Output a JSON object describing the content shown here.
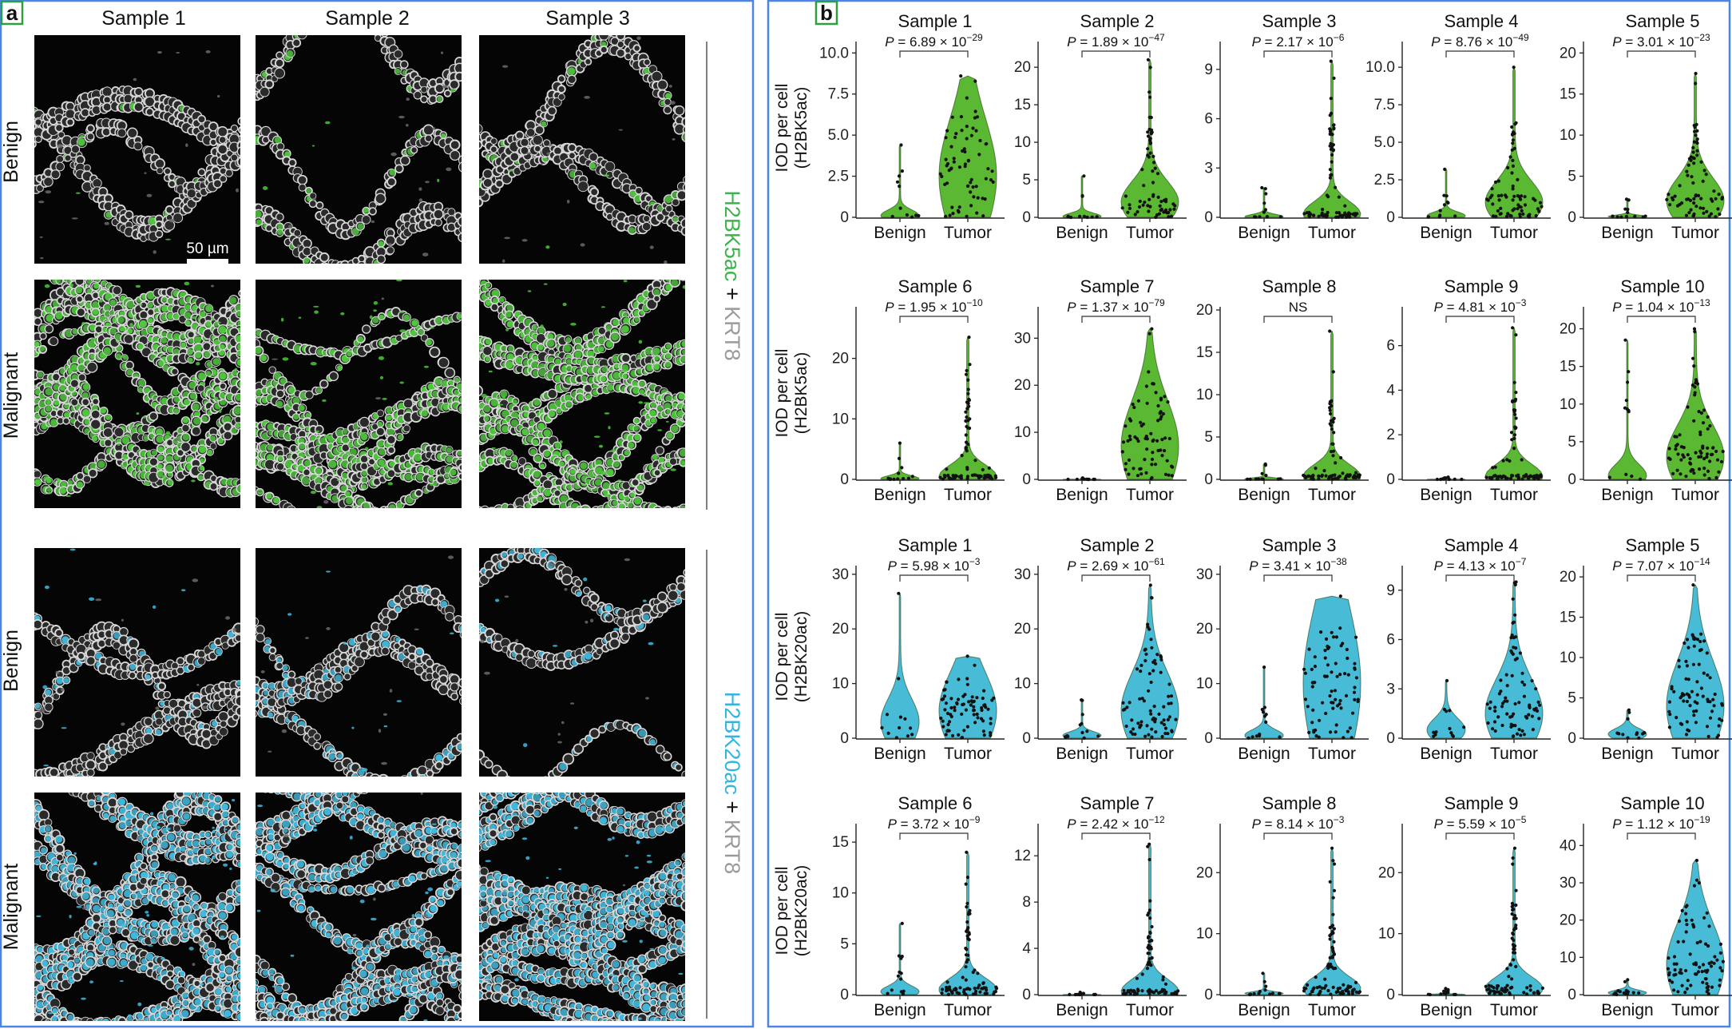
{
  "panel_a": {
    "label": "a",
    "column_headers": [
      "Sample 1",
      "Sample 2",
      "Sample 3"
    ],
    "row_labels": [
      "Benign",
      "Malignant",
      "Benign",
      "Malignant"
    ],
    "scale_bar": "50 µm",
    "side_labels": [
      {
        "marker": "H2BK5ac",
        "joiner": " + ",
        "counter": "KRT8"
      },
      {
        "marker": "H2BK20ac",
        "joiner": " + ",
        "counter": "KRT8"
      }
    ],
    "images": [
      {
        "row": 0,
        "col": 0,
        "nuclear_stain": "H2BK5ac",
        "nuclear_fraction": 0.05
      },
      {
        "row": 0,
        "col": 1,
        "nuclear_stain": "H2BK5ac",
        "nuclear_fraction": 0.12
      },
      {
        "row": 0,
        "col": 2,
        "nuclear_stain": "H2BK5ac",
        "nuclear_fraction": 0.08
      },
      {
        "row": 1,
        "col": 0,
        "nuclear_stain": "H2BK5ac",
        "nuclear_fraction": 0.65
      },
      {
        "row": 1,
        "col": 1,
        "nuclear_stain": "H2BK5ac",
        "nuclear_fraction": 0.6
      },
      {
        "row": 1,
        "col": 2,
        "nuclear_stain": "H2BK5ac",
        "nuclear_fraction": 0.8
      },
      {
        "row": 2,
        "col": 0,
        "nuclear_stain": "H2BK20ac",
        "nuclear_fraction": 0.15
      },
      {
        "row": 2,
        "col": 1,
        "nuclear_stain": "H2BK20ac",
        "nuclear_fraction": 0.25
      },
      {
        "row": 2,
        "col": 2,
        "nuclear_stain": "H2BK20ac",
        "nuclear_fraction": 0.15
      },
      {
        "row": 3,
        "col": 0,
        "nuclear_stain": "H2BK20ac",
        "nuclear_fraction": 0.7
      },
      {
        "row": 3,
        "col": 1,
        "nuclear_stain": "H2BK20ac",
        "nuclear_fraction": 0.65
      },
      {
        "row": 3,
        "col": 2,
        "nuclear_stain": "H2BK20ac",
        "nuclear_fraction": 0.7
      }
    ]
  },
  "panel_b": {
    "label": "b",
    "x_categories": [
      "Benign",
      "Tumor"
    ],
    "row_ylabels": [
      [
        "IOD per cell",
        "(H2BK5ac)"
      ],
      [
        "IOD per cell",
        "(H2BK5ac)"
      ],
      [
        "IOD per cell",
        "(H2BK20ac)"
      ],
      [
        "IOD per cell",
        "(H2BK20ac)"
      ]
    ]
  },
  "colors": {
    "h2bk5ac": "#5bb832",
    "h2bk20ac": "#48bcd6",
    "frame": "#4a86e8",
    "label_box": "#2e9e3e"
  },
  "chart_data": [
    {
      "type": "violin",
      "row": 0,
      "title": "Sample 1",
      "series": "H2BK5ac",
      "ylim": [
        0,
        10.5
      ],
      "yticks": [
        0,
        2.5,
        5.0,
        7.5,
        10.0
      ],
      "ytick_labels": [
        "0",
        "2.5",
        "5.0",
        "7.5",
        "10.0"
      ],
      "p_label": {
        "prefix": "P = 6.89 × 10",
        "exp": "−29"
      },
      "groups": [
        {
          "name": "Benign",
          "max": 4.4,
          "median": 0.1
        },
        {
          "name": "Tumor",
          "max": 8.6,
          "median": 2.5
        }
      ]
    },
    {
      "type": "violin",
      "row": 0,
      "title": "Sample 2",
      "series": "H2BK5ac",
      "ylim": [
        0,
        23
      ],
      "yticks": [
        0,
        5,
        10,
        15,
        20
      ],
      "ytick_labels": [
        "0",
        "5",
        "10",
        "15",
        "20"
      ],
      "p_label": {
        "prefix": "P = 1.89 × 10",
        "exp": "−47"
      },
      "groups": [
        {
          "name": "Benign",
          "max": 5.5,
          "median": 0.1
        },
        {
          "name": "Tumor",
          "max": 21,
          "median": 2
        }
      ]
    },
    {
      "type": "violin",
      "row": 0,
      "title": "Sample 3",
      "series": "H2BK5ac",
      "ylim": [
        0,
        10.5
      ],
      "yticks": [
        0,
        3,
        6,
        9
      ],
      "ytick_labels": [
        "0",
        "3",
        "6",
        "9"
      ],
      "p_label": {
        "prefix": "P = 2.17 × 10",
        "exp": "−6"
      },
      "groups": [
        {
          "name": "Benign",
          "max": 1.8,
          "median": 0
        },
        {
          "name": "Tumor",
          "max": 9.5,
          "median": 0.2
        }
      ]
    },
    {
      "type": "violin",
      "row": 0,
      "title": "Sample 4",
      "series": "H2BK5ac",
      "ylim": [
        0,
        11.5
      ],
      "yticks": [
        0,
        2.5,
        5.0,
        7.5,
        10.0
      ],
      "ytick_labels": [
        "0",
        "2.5",
        "5.0",
        "7.5",
        "10.0"
      ],
      "p_label": {
        "prefix": "P = 8.76 × 10",
        "exp": "−49"
      },
      "groups": [
        {
          "name": "Benign",
          "max": 3.2,
          "median": 0.1
        },
        {
          "name": "Tumor",
          "max": 10,
          "median": 1
        }
      ]
    },
    {
      "type": "violin",
      "row": 0,
      "title": "Sample 5",
      "series": "H2BK5ac",
      "ylim": [
        0,
        21
      ],
      "yticks": [
        0,
        5,
        10,
        15,
        20
      ],
      "ytick_labels": [
        "0",
        "5",
        "10",
        "15",
        "20"
      ],
      "p_label": {
        "prefix": "P = 3.01 × 10",
        "exp": "−23"
      },
      "groups": [
        {
          "name": "Benign",
          "max": 2.2,
          "median": 0.1
        },
        {
          "name": "Tumor",
          "max": 17.5,
          "median": 2
        }
      ]
    },
    {
      "type": "violin",
      "row": 1,
      "title": "Sample 6",
      "series": "H2BK5ac",
      "ylim": [
        0,
        28
      ],
      "yticks": [
        0,
        10,
        20
      ],
      "ytick_labels": [
        "0",
        "10",
        "20"
      ],
      "p_label": {
        "prefix": "P = 1.95 × 10",
        "exp": "−10"
      },
      "groups": [
        {
          "name": "Benign",
          "max": 6,
          "median": 0
        },
        {
          "name": "Tumor",
          "max": 23.5,
          "median": 0.5
        }
      ]
    },
    {
      "type": "violin",
      "row": 1,
      "title": "Sample 7",
      "series": "H2BK5ac",
      "ylim": [
        0,
        36
      ],
      "yticks": [
        0,
        10,
        20,
        30
      ],
      "ytick_labels": [
        "0",
        "10",
        "20",
        "30"
      ],
      "p_label": {
        "prefix": "P = 1.37 × 10",
        "exp": "−79"
      },
      "groups": [
        {
          "name": "Benign",
          "max": 0.3,
          "median": 0
        },
        {
          "name": "Tumor",
          "max": 32,
          "median": 7
        }
      ]
    },
    {
      "type": "violin",
      "row": 1,
      "title": "Sample 8",
      "series": "H2BK5ac",
      "ylim": [
        0,
        20
      ],
      "yticks": [
        0,
        5,
        10,
        15,
        20
      ],
      "ytick_labels": [
        "0",
        "5",
        "10",
        "15",
        "20"
      ],
      "p_label": {
        "prefix": "NS",
        "exp": ""
      },
      "groups": [
        {
          "name": "Benign",
          "max": 1.8,
          "median": 0
        },
        {
          "name": "Tumor",
          "max": 17.5,
          "median": 0.2
        }
      ]
    },
    {
      "type": "violin",
      "row": 1,
      "title": "Sample 9",
      "series": "H2BK5ac",
      "ylim": [
        0,
        7.6
      ],
      "yticks": [
        0,
        2,
        4,
        6
      ],
      "ytick_labels": [
        "0",
        "2",
        "4",
        "6"
      ],
      "p_label": {
        "prefix": "P = 4.81 × 10",
        "exp": "−3"
      },
      "groups": [
        {
          "name": "Benign",
          "max": 0.1,
          "median": 0
        },
        {
          "name": "Tumor",
          "max": 6.8,
          "median": 0.1
        }
      ]
    },
    {
      "type": "violin",
      "row": 1,
      "title": "Sample 10",
      "series": "H2BK5ac",
      "ylim": [
        0,
        22.5
      ],
      "yticks": [
        0,
        5,
        10,
        15,
        20
      ],
      "ytick_labels": [
        "0",
        "5",
        "10",
        "15",
        "20"
      ],
      "p_label": {
        "prefix": "P = 1.04 × 10",
        "exp": "−13"
      },
      "groups": [
        {
          "name": "Benign",
          "max": 18.5,
          "median": 0.5
        },
        {
          "name": "Tumor",
          "max": 20,
          "median": 3
        }
      ]
    },
    {
      "type": "violin",
      "row": 2,
      "title": "Sample 1",
      "series": "H2BK20ac",
      "ylim": [
        0,
        31
      ],
      "yticks": [
        0,
        10,
        20,
        30
      ],
      "ytick_labels": [
        "0",
        "10",
        "20",
        "30"
      ],
      "p_label": {
        "prefix": "P = 5.98 × 10",
        "exp": "−3"
      },
      "groups": [
        {
          "name": "Benign",
          "max": 26.5,
          "median": 3
        },
        {
          "name": "Tumor",
          "max": 15,
          "median": 5
        }
      ]
    },
    {
      "type": "violin",
      "row": 2,
      "title": "Sample 2",
      "series": "H2BK20ac",
      "ylim": [
        0,
        31
      ],
      "yticks": [
        0,
        10,
        20,
        30
      ],
      "ytick_labels": [
        "0",
        "10",
        "20",
        "30"
      ],
      "p_label": {
        "prefix": "P = 2.69 × 10",
        "exp": "−61"
      },
      "groups": [
        {
          "name": "Benign",
          "max": 7,
          "median": 0.5
        },
        {
          "name": "Tumor",
          "max": 28,
          "median": 5
        }
      ]
    },
    {
      "type": "violin",
      "row": 2,
      "title": "Sample 3",
      "series": "H2BK20ac",
      "ylim": [
        0,
        31
      ],
      "yticks": [
        0,
        10,
        20,
        30
      ],
      "ytick_labels": [
        "0",
        "10",
        "20",
        "30"
      ],
      "p_label": {
        "prefix": "P = 3.41 × 10",
        "exp": "−38"
      },
      "groups": [
        {
          "name": "Benign",
          "max": 13,
          "median": 0.5
        },
        {
          "name": "Tumor",
          "max": 26,
          "median": 10
        }
      ]
    },
    {
      "type": "violin",
      "row": 2,
      "title": "Sample 4",
      "series": "H2BK20ac",
      "ylim": [
        0,
        10.3
      ],
      "yticks": [
        0,
        3,
        6,
        9
      ],
      "ytick_labels": [
        "0",
        "3",
        "6",
        "9"
      ],
      "p_label": {
        "prefix": "P = 4.13 × 10",
        "exp": "−7"
      },
      "groups": [
        {
          "name": "Benign",
          "max": 3.5,
          "median": 0.5
        },
        {
          "name": "Tumor",
          "max": 9.5,
          "median": 1.5
        }
      ]
    },
    {
      "type": "violin",
      "row": 2,
      "title": "Sample 5",
      "series": "H2BK20ac",
      "ylim": [
        0,
        21
      ],
      "yticks": [
        0,
        5,
        10,
        15,
        20
      ],
      "ytick_labels": [
        "0",
        "5",
        "10",
        "15",
        "20"
      ],
      "p_label": {
        "prefix": "P = 7.07 × 10",
        "exp": "−14"
      },
      "groups": [
        {
          "name": "Benign",
          "max": 3.5,
          "median": 0.5
        },
        {
          "name": "Tumor",
          "max": 19,
          "median": 4
        }
      ]
    },
    {
      "type": "violin",
      "row": 3,
      "title": "Sample 6",
      "series": "H2BK20ac",
      "ylim": [
        0,
        16.5
      ],
      "yticks": [
        0,
        5,
        10,
        15
      ],
      "ytick_labels": [
        "0",
        "5",
        "10",
        "15"
      ],
      "p_label": {
        "prefix": "P = 3.72 × 10",
        "exp": "−9"
      },
      "groups": [
        {
          "name": "Benign",
          "max": 7,
          "median": 0.3
        },
        {
          "name": "Tumor",
          "max": 14,
          "median": 0.5
        }
      ]
    },
    {
      "type": "violin",
      "row": 3,
      "title": "Sample 7",
      "series": "H2BK20ac",
      "ylim": [
        0,
        14.5
      ],
      "yticks": [
        0,
        4,
        8,
        12
      ],
      "ytick_labels": [
        "0",
        "4",
        "8",
        "12"
      ],
      "p_label": {
        "prefix": "P = 2.42 × 10",
        "exp": "−12"
      },
      "groups": [
        {
          "name": "Benign",
          "max": 0.2,
          "median": 0
        },
        {
          "name": "Tumor",
          "max": 13,
          "median": 0.3
        }
      ]
    },
    {
      "type": "violin",
      "row": 3,
      "title": "Sample 8",
      "series": "H2BK20ac",
      "ylim": [
        0,
        27.5
      ],
      "yticks": [
        0,
        10,
        20
      ],
      "ytick_labels": [
        "0",
        "10",
        "20"
      ],
      "p_label": {
        "prefix": "P = 8.14 × 10",
        "exp": "−3"
      },
      "groups": [
        {
          "name": "Benign",
          "max": 3.5,
          "median": 0.2
        },
        {
          "name": "Tumor",
          "max": 24,
          "median": 1
        }
      ]
    },
    {
      "type": "violin",
      "row": 3,
      "title": "Sample 9",
      "series": "H2BK20ac",
      "ylim": [
        0,
        27.5
      ],
      "yticks": [
        0,
        10,
        20
      ],
      "ytick_labels": [
        "0",
        "10",
        "20"
      ],
      "p_label": {
        "prefix": "P = 5.59 × 10",
        "exp": "−5"
      },
      "groups": [
        {
          "name": "Benign",
          "max": 1,
          "median": 0
        },
        {
          "name": "Tumor",
          "max": 24,
          "median": 1
        }
      ]
    },
    {
      "type": "violin",
      "row": 3,
      "title": "Sample 10",
      "series": "H2BK20ac",
      "ylim": [
        0,
        45
      ],
      "yticks": [
        0,
        10,
        20,
        30,
        40
      ],
      "ytick_labels": [
        "0",
        "10",
        "20",
        "30",
        "40"
      ],
      "p_label": {
        "prefix": "P = 1.12 × 10",
        "exp": "−19"
      },
      "groups": [
        {
          "name": "Benign",
          "max": 4,
          "median": 0.5
        },
        {
          "name": "Tumor",
          "max": 36,
          "median": 8
        }
      ]
    }
  ]
}
